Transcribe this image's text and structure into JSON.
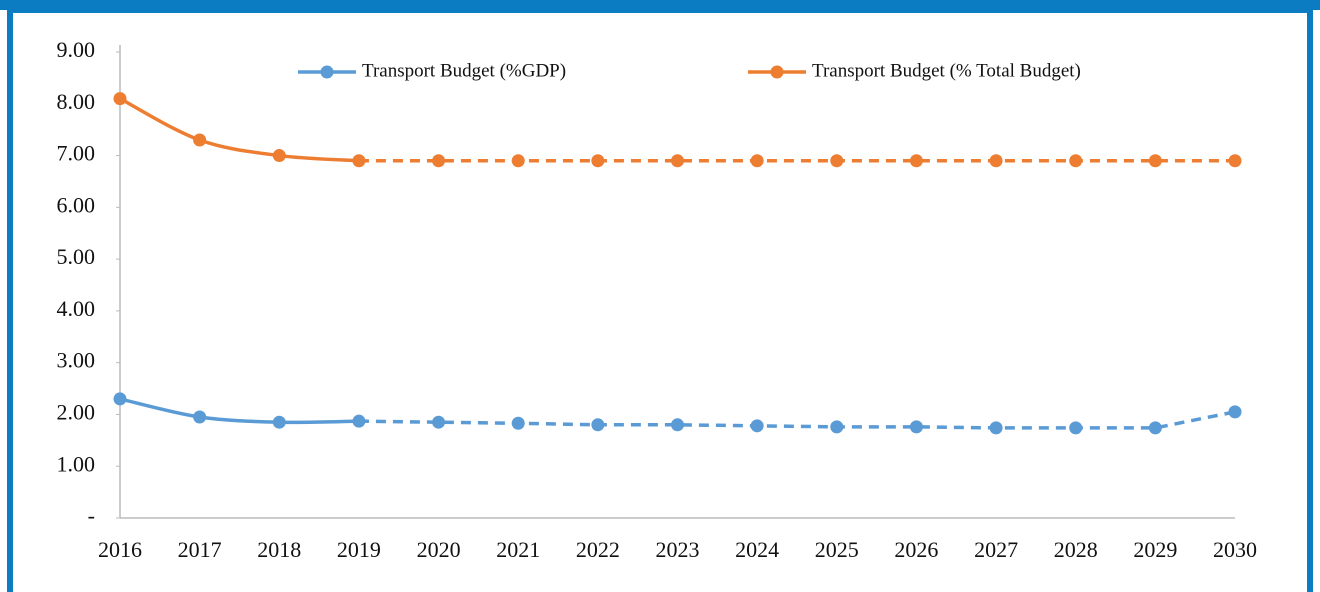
{
  "chart_data": {
    "type": "line",
    "categories": [
      "2016",
      "2017",
      "2018",
      "2019",
      "2020",
      "2021",
      "2022",
      "2023",
      "2024",
      "2025",
      "2026",
      "2027",
      "2028",
      "2029",
      "2030"
    ],
    "series": [
      {
        "name": "Transport Budget (%GDP)",
        "color": "#5b9bd5",
        "values": [
          2.3,
          1.95,
          1.85,
          1.87,
          1.85,
          1.83,
          1.8,
          1.8,
          1.78,
          1.76,
          1.76,
          1.74,
          1.74,
          1.74,
          2.05
        ]
      },
      {
        "name": "Transport Budget (% Total Budget)",
        "color": "#ed7d31",
        "values": [
          8.1,
          7.3,
          7.0,
          6.9,
          6.9,
          6.9,
          6.9,
          6.9,
          6.9,
          6.9,
          6.9,
          6.9,
          6.9,
          6.9,
          6.9
        ]
      }
    ],
    "projection_from": "2019",
    "ylim": [
      0,
      9
    ],
    "yticks": [
      {
        "value": 0,
        "label": "-"
      },
      {
        "value": 1,
        "label": "1.00"
      },
      {
        "value": 2,
        "label": "2.00"
      },
      {
        "value": 3,
        "label": "3.00"
      },
      {
        "value": 4,
        "label": "4.00"
      },
      {
        "value": 5,
        "label": "5.00"
      },
      {
        "value": 6,
        "label": "6.00"
      },
      {
        "value": 7,
        "label": "7.00"
      },
      {
        "value": 8,
        "label": "8.00"
      },
      {
        "value": 9,
        "label": "9.00"
      }
    ],
    "legend": "top",
    "grid": false
  }
}
